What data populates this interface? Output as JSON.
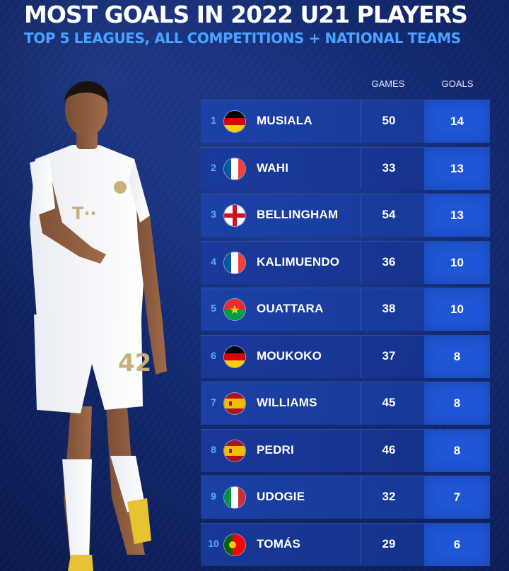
{
  "header": {
    "title": "MOST GOALS IN 2022 U21 PLAYERS",
    "subtitle": "TOP 5 LEAGUES, ALL COMPETITIONS + NATIONAL TEAMS"
  },
  "columns": {
    "games": "GAMES",
    "goals": "GOALS"
  },
  "player_image": {
    "shirt_number": "42"
  },
  "rows": [
    {
      "rank": "1",
      "flag": "germany-flag",
      "name": "MUSIALA",
      "games": "50",
      "goals": "14"
    },
    {
      "rank": "2",
      "flag": "france-flag",
      "name": "WAHI",
      "games": "33",
      "goals": "13"
    },
    {
      "rank": "3",
      "flag": "england-flag",
      "name": "BELLINGHAM",
      "games": "54",
      "goals": "13"
    },
    {
      "rank": "4",
      "flag": "france-flag",
      "name": "KALIMUENDO",
      "games": "36",
      "goals": "10"
    },
    {
      "rank": "5",
      "flag": "burkina-faso-flag",
      "name": "OUATTARA",
      "games": "38",
      "goals": "10"
    },
    {
      "rank": "6",
      "flag": "germany-flag",
      "name": "MOUKOKO",
      "games": "37",
      "goals": "8"
    },
    {
      "rank": "7",
      "flag": "spain-flag",
      "name": "WILLIAMS",
      "games": "45",
      "goals": "8"
    },
    {
      "rank": "8",
      "flag": "spain-flag",
      "name": "PEDRI",
      "games": "46",
      "goals": "8"
    },
    {
      "rank": "9",
      "flag": "italy-flag",
      "name": "UDOGIE",
      "games": "32",
      "goals": "7"
    },
    {
      "rank": "10",
      "flag": "portugal-flag",
      "name": "TOMÁS",
      "games": "29",
      "goals": "6"
    }
  ],
  "colors": {
    "background": "#12286e",
    "subtitle": "#4aa3ff",
    "row": "#1c42aa",
    "goals_cell": "#1f56d6",
    "rank": "#5aaeff"
  }
}
